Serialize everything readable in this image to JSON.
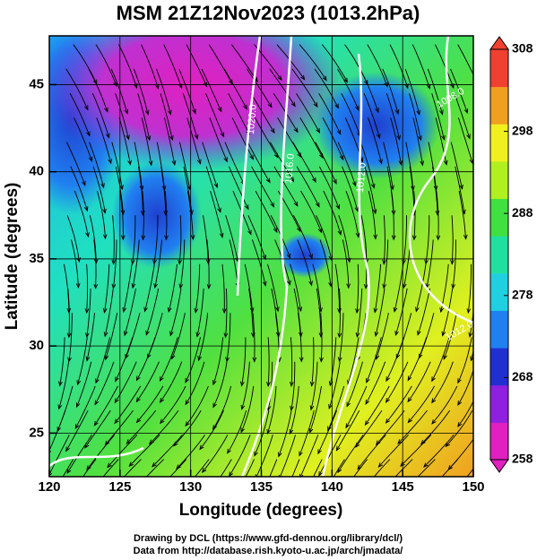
{
  "chart_data": {
    "type": "map",
    "title": "MSM 21Z12Nov2023 (1013.2hPa)",
    "x_label": "Longitude (degrees)",
    "y_label": "Latitude  (degrees)",
    "xlim": [
      120,
      150
    ],
    "ylim": [
      22.5,
      47.8
    ],
    "xticks": [
      120,
      125,
      130,
      135,
      140,
      145,
      150
    ],
    "yticks": [
      25,
      30,
      35,
      40,
      45
    ],
    "grid": true,
    "colorbar": {
      "lim": [
        258,
        308
      ],
      "ticks": [
        258,
        268,
        278,
        288,
        298,
        308
      ],
      "colors": [
        "#e020c0",
        "#9020e0",
        "#2030d0",
        "#2080f0",
        "#20d0e0",
        "#20e0a0",
        "#40e040",
        "#b0f020",
        "#f0f020",
        "#f0a020",
        "#f04030"
      ]
    },
    "contour_labels": [
      "1020.0",
      "1016.0",
      "1012.0",
      "1008.0",
      "1012.0"
    ]
  },
  "footer": {
    "line1": "Drawing by DCL (https://www.gfd-dennou.org/library/dcl/)",
    "line2": "Data from http://database.rish.kyoto-u.ac.jp/arch/jmadata/"
  }
}
